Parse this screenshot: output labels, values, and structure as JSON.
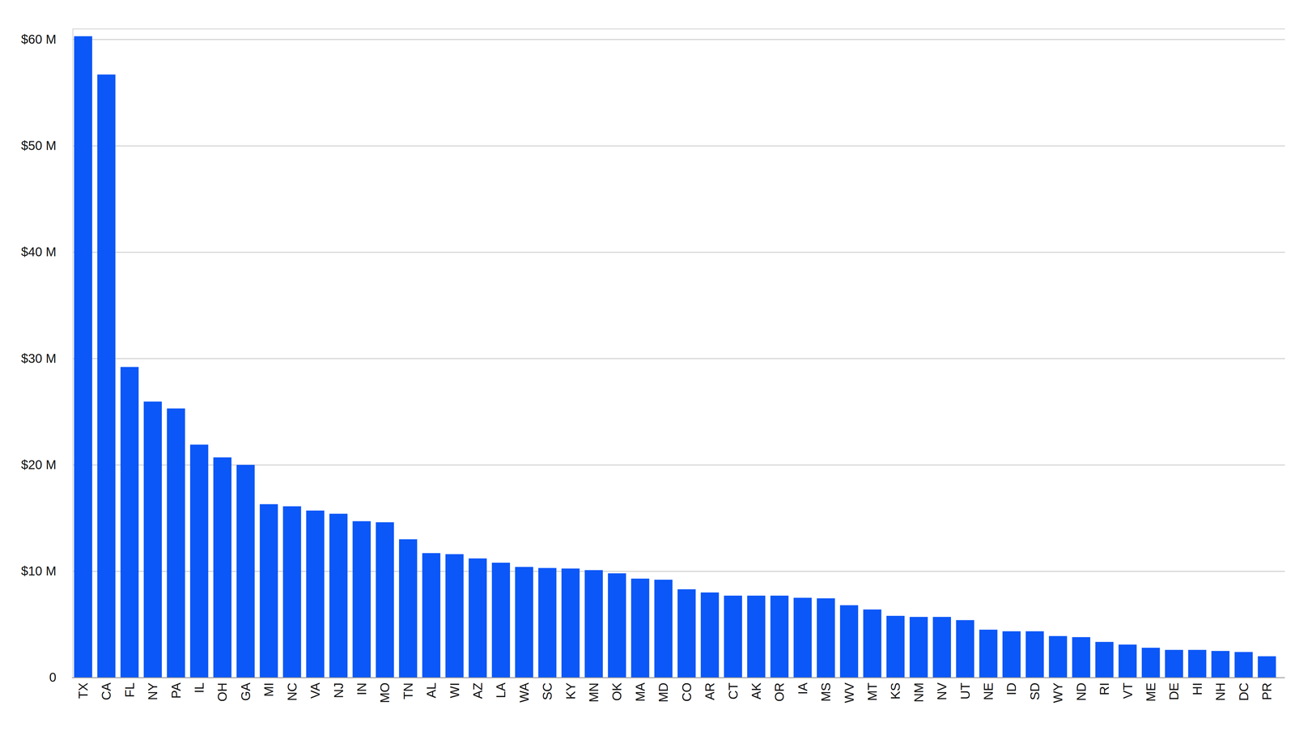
{
  "chart_data": {
    "type": "bar",
    "categories": [
      "TX",
      "CA",
      "FL",
      "NY",
      "PA",
      "IL",
      "OH",
      "GA",
      "MI",
      "NC",
      "VA",
      "NJ",
      "IN",
      "MO",
      "TN",
      "AL",
      "WI",
      "AZ",
      "LA",
      "WA",
      "SC",
      "KY",
      "MN",
      "OK",
      "MA",
      "MD",
      "CO",
      "AR",
      "CT",
      "AK",
      "OR",
      "IA",
      "MS",
      "WV",
      "MT",
      "KS",
      "NM",
      "NV",
      "UT",
      "NE",
      "ID",
      "SD",
      "WY",
      "ND",
      "RI",
      "VT",
      "ME",
      "DE",
      "HI",
      "NH",
      "DC",
      "PR"
    ],
    "values": [
      60.3,
      56.7,
      29.2,
      25.95,
      25.3,
      21.9,
      20.7,
      20.0,
      16.3,
      16.1,
      15.7,
      15.4,
      14.7,
      14.6,
      13.0,
      11.7,
      11.6,
      11.2,
      10.8,
      10.4,
      10.3,
      10.25,
      10.1,
      9.8,
      9.3,
      9.2,
      8.3,
      8.0,
      7.7,
      7.7,
      7.7,
      7.5,
      7.45,
      6.8,
      6.4,
      5.8,
      5.7,
      5.7,
      5.4,
      4.5,
      4.35,
      4.35,
      3.9,
      3.8,
      3.35,
      3.1,
      2.8,
      2.6,
      2.6,
      2.5,
      2.4,
      2.0
    ],
    "color": "#0b57f7",
    "ylim": [
      0,
      61
    ],
    "yticks": [
      0,
      {
        "value": 10,
        "label": "$10 M"
      },
      {
        "value": 20,
        "label": "$20 M"
      },
      {
        "value": 30,
        "label": "$30 M"
      },
      {
        "value": 40,
        "label": "$40 M"
      },
      {
        "value": 50,
        "label": "$50 M"
      },
      {
        "value": 60,
        "label": "$60 M"
      }
    ],
    "grid": true
  }
}
